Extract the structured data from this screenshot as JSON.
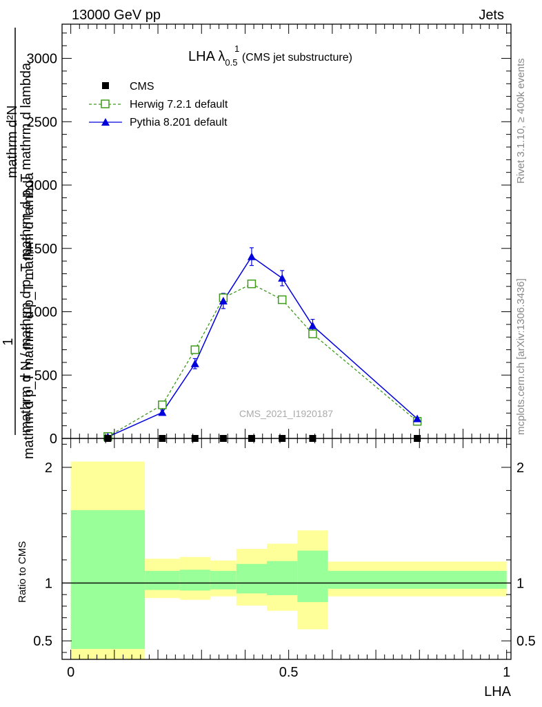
{
  "header": {
    "left": "13000 GeV pp",
    "right": "Jets"
  },
  "side_labels": {
    "rivet": "Rivet 3.1.10, ≥ 400k events",
    "mcplots": "mcplots.cern.ch [arXiv:1306.3436]"
  },
  "watermark": "CMS_2021_I1920187",
  "title": {
    "main": "LHA λ",
    "sup": "1",
    "sub": "0.5",
    "suffix": " (CMS jet substructure)"
  },
  "ylabel": {
    "one": "1",
    "denominator": "mathrm d N / mathrm d p_T mathrm d p_T mathrm d lambda",
    "top_numerator": "mathrm d²N",
    "second_line": "mathrm d p_T mathrm d p_T mathrm d lambda"
  },
  "ratio_ylabel": "Ratio to CMS",
  "xlabel": "LHA",
  "colors": {
    "herwig": "#3d9a1a",
    "pythia": "#0000dd",
    "band_outer": "#ffff99",
    "band_inner": "#99ff99"
  },
  "chart_data": [
    {
      "type": "line",
      "panel": "main",
      "xlim": [
        -0.02,
        1.01
      ],
      "ylim": [
        0,
        3270
      ],
      "yticks": [
        0,
        500,
        1000,
        1500,
        2000,
        2500,
        3000
      ],
      "ytick_labels": [
        "0",
        "500",
        "1000",
        "1500",
        "2000",
        "2500",
        "3000"
      ],
      "legend_position": "top-left",
      "series": [
        {
          "name": "CMS",
          "marker": "square-filled",
          "x": [
            0.085,
            0.21,
            0.285,
            0.35,
            0.415,
            0.485,
            0.555,
            0.795
          ],
          "y": [
            0,
            0,
            0,
            0,
            0,
            0,
            0,
            0
          ]
        },
        {
          "name": "Herwig 7.2.1 default",
          "marker": "square-open",
          "style": "dashed",
          "x": [
            0.085,
            0.21,
            0.285,
            0.35,
            0.415,
            0.485,
            0.555,
            0.795
          ],
          "y": [
            15,
            265,
            700,
            1110,
            1220,
            1095,
            825,
            135
          ],
          "err": [
            3,
            15,
            25,
            35,
            10,
            15,
            10,
            5
          ]
        },
        {
          "name": "Pythia 8.201 default",
          "marker": "triangle-filled",
          "style": "solid",
          "x": [
            0.085,
            0.21,
            0.285,
            0.35,
            0.415,
            0.485,
            0.555,
            0.795
          ],
          "y": [
            12,
            205,
            590,
            1085,
            1435,
            1265,
            890,
            155
          ],
          "err": [
            3,
            20,
            40,
            60,
            70,
            60,
            50,
            10
          ]
        }
      ]
    },
    {
      "type": "area",
      "panel": "ratio",
      "xlim": [
        -0.02,
        1.01
      ],
      "ylim": [
        0.34,
        2.25
      ],
      "yticks": [
        0.5,
        1,
        2
      ],
      "ytick_labels": [
        "0.5",
        "1",
        "2"
      ],
      "xticks": [
        0,
        0.5,
        1
      ],
      "xtick_labels": [
        "0",
        "0.5",
        "1"
      ],
      "reference_line": 1,
      "bins": [
        0.0,
        0.17,
        0.25,
        0.32,
        0.38,
        0.45,
        0.52,
        0.59,
        1.0
      ],
      "outer_low": [
        0.34,
        0.87,
        0.855,
        0.885,
        0.805,
        0.76,
        0.6,
        0.885
      ],
      "outer_high": [
        2.05,
        1.21,
        1.225,
        1.195,
        1.295,
        1.34,
        1.455,
        1.185
      ],
      "inner_low": [
        0.43,
        0.94,
        0.935,
        0.945,
        0.91,
        0.895,
        0.835,
        0.95
      ],
      "inner_high": [
        1.63,
        1.105,
        1.115,
        1.105,
        1.165,
        1.19,
        1.28,
        1.105
      ]
    }
  ]
}
